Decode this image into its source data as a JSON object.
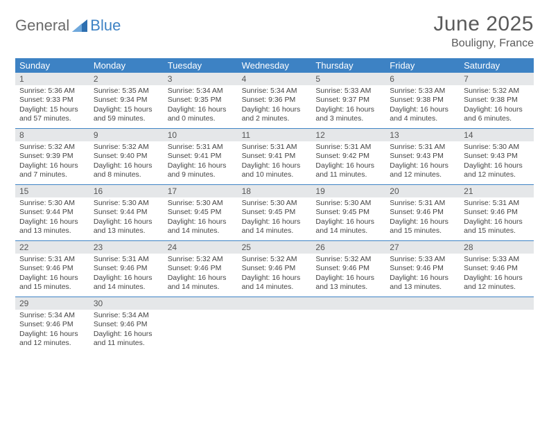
{
  "brand": {
    "general": "General",
    "blue": "Blue",
    "sail_color": "#2e6fb0"
  },
  "title": "June 2025",
  "location": "Bouligny, France",
  "header_bg": "#3d82c4",
  "daynum_bg": "#e5e7e9",
  "week_border": "#3d82c4",
  "weekdays": [
    "Sunday",
    "Monday",
    "Tuesday",
    "Wednesday",
    "Thursday",
    "Friday",
    "Saturday"
  ],
  "weeks": [
    [
      {
        "n": "1",
        "sr": "Sunrise: 5:36 AM",
        "ss": "Sunset: 9:33 PM",
        "dl": "Daylight: 15 hours and 57 minutes."
      },
      {
        "n": "2",
        "sr": "Sunrise: 5:35 AM",
        "ss": "Sunset: 9:34 PM",
        "dl": "Daylight: 15 hours and 59 minutes."
      },
      {
        "n": "3",
        "sr": "Sunrise: 5:34 AM",
        "ss": "Sunset: 9:35 PM",
        "dl": "Daylight: 16 hours and 0 minutes."
      },
      {
        "n": "4",
        "sr": "Sunrise: 5:34 AM",
        "ss": "Sunset: 9:36 PM",
        "dl": "Daylight: 16 hours and 2 minutes."
      },
      {
        "n": "5",
        "sr": "Sunrise: 5:33 AM",
        "ss": "Sunset: 9:37 PM",
        "dl": "Daylight: 16 hours and 3 minutes."
      },
      {
        "n": "6",
        "sr": "Sunrise: 5:33 AM",
        "ss": "Sunset: 9:38 PM",
        "dl": "Daylight: 16 hours and 4 minutes."
      },
      {
        "n": "7",
        "sr": "Sunrise: 5:32 AM",
        "ss": "Sunset: 9:38 PM",
        "dl": "Daylight: 16 hours and 6 minutes."
      }
    ],
    [
      {
        "n": "8",
        "sr": "Sunrise: 5:32 AM",
        "ss": "Sunset: 9:39 PM",
        "dl": "Daylight: 16 hours and 7 minutes."
      },
      {
        "n": "9",
        "sr": "Sunrise: 5:32 AM",
        "ss": "Sunset: 9:40 PM",
        "dl": "Daylight: 16 hours and 8 minutes."
      },
      {
        "n": "10",
        "sr": "Sunrise: 5:31 AM",
        "ss": "Sunset: 9:41 PM",
        "dl": "Daylight: 16 hours and 9 minutes."
      },
      {
        "n": "11",
        "sr": "Sunrise: 5:31 AM",
        "ss": "Sunset: 9:41 PM",
        "dl": "Daylight: 16 hours and 10 minutes."
      },
      {
        "n": "12",
        "sr": "Sunrise: 5:31 AM",
        "ss": "Sunset: 9:42 PM",
        "dl": "Daylight: 16 hours and 11 minutes."
      },
      {
        "n": "13",
        "sr": "Sunrise: 5:31 AM",
        "ss": "Sunset: 9:43 PM",
        "dl": "Daylight: 16 hours and 12 minutes."
      },
      {
        "n": "14",
        "sr": "Sunrise: 5:30 AM",
        "ss": "Sunset: 9:43 PM",
        "dl": "Daylight: 16 hours and 12 minutes."
      }
    ],
    [
      {
        "n": "15",
        "sr": "Sunrise: 5:30 AM",
        "ss": "Sunset: 9:44 PM",
        "dl": "Daylight: 16 hours and 13 minutes."
      },
      {
        "n": "16",
        "sr": "Sunrise: 5:30 AM",
        "ss": "Sunset: 9:44 PM",
        "dl": "Daylight: 16 hours and 13 minutes."
      },
      {
        "n": "17",
        "sr": "Sunrise: 5:30 AM",
        "ss": "Sunset: 9:45 PM",
        "dl": "Daylight: 16 hours and 14 minutes."
      },
      {
        "n": "18",
        "sr": "Sunrise: 5:30 AM",
        "ss": "Sunset: 9:45 PM",
        "dl": "Daylight: 16 hours and 14 minutes."
      },
      {
        "n": "19",
        "sr": "Sunrise: 5:30 AM",
        "ss": "Sunset: 9:45 PM",
        "dl": "Daylight: 16 hours and 14 minutes."
      },
      {
        "n": "20",
        "sr": "Sunrise: 5:31 AM",
        "ss": "Sunset: 9:46 PM",
        "dl": "Daylight: 16 hours and 15 minutes."
      },
      {
        "n": "21",
        "sr": "Sunrise: 5:31 AM",
        "ss": "Sunset: 9:46 PM",
        "dl": "Daylight: 16 hours and 15 minutes."
      }
    ],
    [
      {
        "n": "22",
        "sr": "Sunrise: 5:31 AM",
        "ss": "Sunset: 9:46 PM",
        "dl": "Daylight: 16 hours and 15 minutes."
      },
      {
        "n": "23",
        "sr": "Sunrise: 5:31 AM",
        "ss": "Sunset: 9:46 PM",
        "dl": "Daylight: 16 hours and 14 minutes."
      },
      {
        "n": "24",
        "sr": "Sunrise: 5:32 AM",
        "ss": "Sunset: 9:46 PM",
        "dl": "Daylight: 16 hours and 14 minutes."
      },
      {
        "n": "25",
        "sr": "Sunrise: 5:32 AM",
        "ss": "Sunset: 9:46 PM",
        "dl": "Daylight: 16 hours and 14 minutes."
      },
      {
        "n": "26",
        "sr": "Sunrise: 5:32 AM",
        "ss": "Sunset: 9:46 PM",
        "dl": "Daylight: 16 hours and 13 minutes."
      },
      {
        "n": "27",
        "sr": "Sunrise: 5:33 AM",
        "ss": "Sunset: 9:46 PM",
        "dl": "Daylight: 16 hours and 13 minutes."
      },
      {
        "n": "28",
        "sr": "Sunrise: 5:33 AM",
        "ss": "Sunset: 9:46 PM",
        "dl": "Daylight: 16 hours and 12 minutes."
      }
    ],
    [
      {
        "n": "29",
        "sr": "Sunrise: 5:34 AM",
        "ss": "Sunset: 9:46 PM",
        "dl": "Daylight: 16 hours and 12 minutes."
      },
      {
        "n": "30",
        "sr": "Sunrise: 5:34 AM",
        "ss": "Sunset: 9:46 PM",
        "dl": "Daylight: 16 hours and 11 minutes."
      },
      null,
      null,
      null,
      null,
      null
    ]
  ]
}
